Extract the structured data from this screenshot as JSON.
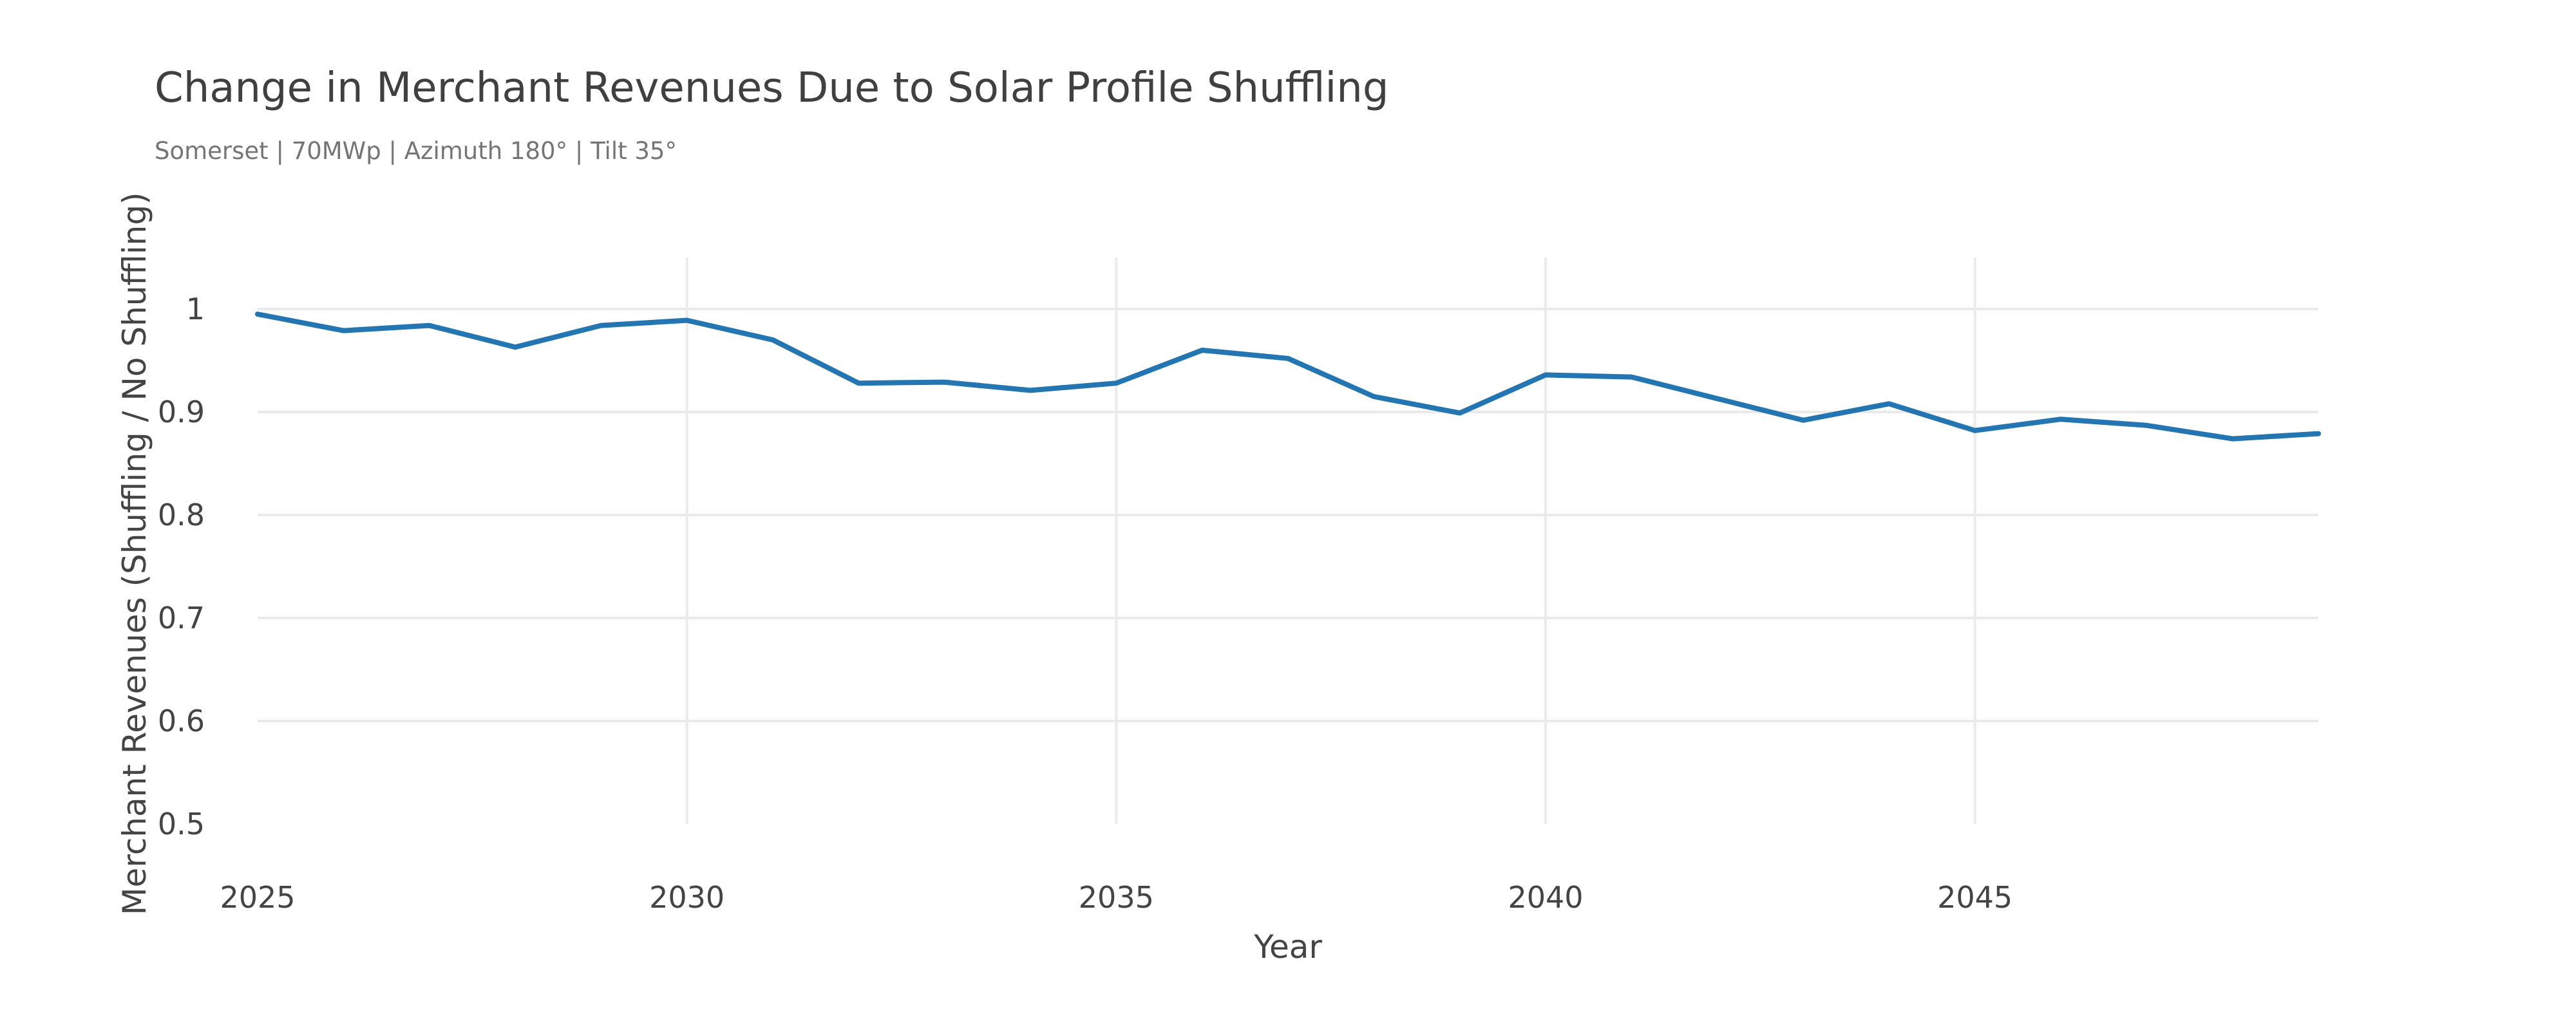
{
  "chart_data": {
    "type": "line",
    "title": "Change in Merchant Revenues Due to Solar Profile Shuffling",
    "subtitle": "Somerset | 70MWp | Azimuth 180° | Tilt 35°",
    "xlabel": "Year",
    "ylabel": "Merchant Revenues (Shuffling / No Shuffling)",
    "xlim": [
      2025,
      2049
    ],
    "ylim": [
      0.5,
      1.05
    ],
    "x_ticks": [
      2025,
      2030,
      2035,
      2040,
      2045
    ],
    "y_ticks": [
      0.5,
      0.6,
      0.7,
      0.8,
      0.9,
      1
    ],
    "y_tick_labels": [
      "0.5",
      "0.6",
      "0.7",
      "0.8",
      "0.9",
      "1"
    ],
    "grid": true,
    "line_color": "#2376b2",
    "x": [
      2025,
      2026,
      2027,
      2028,
      2029,
      2030,
      2031,
      2032,
      2033,
      2034,
      2035,
      2036,
      2037,
      2038,
      2039,
      2040,
      2041,
      2042,
      2043,
      2044,
      2045,
      2046,
      2047,
      2048,
      2049
    ],
    "y": [
      0.995,
      0.979,
      0.984,
      0.963,
      0.984,
      0.989,
      0.97,
      0.928,
      0.929,
      0.921,
      0.928,
      0.96,
      0.952,
      0.915,
      0.899,
      0.936,
      0.934,
      0.913,
      0.892,
      0.908,
      0.882,
      0.893,
      0.887,
      0.874,
      0.879
    ]
  }
}
